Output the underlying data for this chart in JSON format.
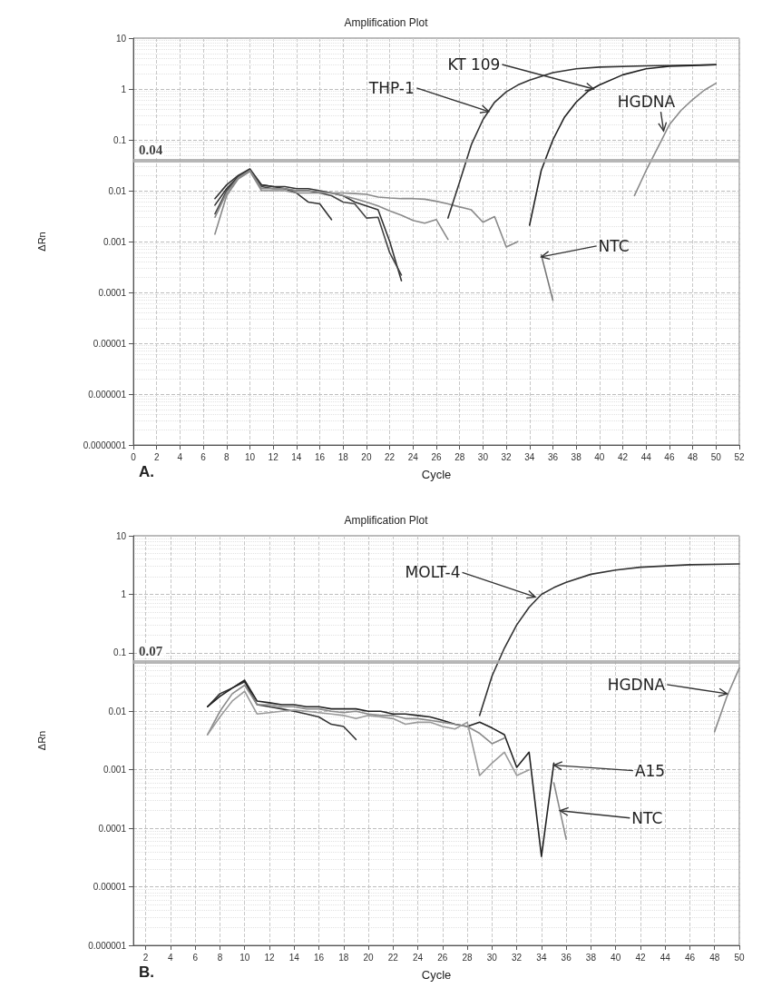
{
  "chart_data": [
    {
      "type": "line",
      "title": "Amplification Plot",
      "xlabel": "Cycle",
      "ylabel": "ΔRn",
      "log": "y",
      "grid": true,
      "xlim": [
        0,
        52
      ],
      "xticks": [
        0,
        2,
        4,
        6,
        8,
        10,
        12,
        14,
        16,
        18,
        20,
        22,
        24,
        26,
        28,
        30,
        32,
        34,
        36,
        38,
        40,
        42,
        44,
        46,
        48,
        50,
        52
      ],
      "ylim": [
        1e-07,
        10
      ],
      "yticks": [
        10,
        1,
        0.1,
        0.01,
        0.001,
        0.0001,
        {
          "value": 1e-05,
          "label": "0.00001"
        },
        {
          "value": 1e-06,
          "label": "0.000001"
        },
        {
          "value": 1e-07,
          "label": "0.0000001"
        }
      ],
      "ref_lines": [
        {
          "axis": "y",
          "value": 0.04,
          "label": "0.04",
          "color": "#aaaaaa"
        }
      ],
      "series": [
        {
          "color": "#333333",
          "x": [
            7,
            8,
            9,
            10,
            11,
            12,
            13,
            14,
            15,
            16,
            17
          ],
          "values": [
            0.007,
            0.013,
            0.02,
            0.027,
            0.013,
            0.012,
            0.011,
            0.009,
            0.006,
            0.0055,
            0.0027
          ]
        },
        {
          "color": "#333333",
          "x": [
            7,
            8,
            9,
            10,
            11,
            12,
            13,
            14,
            15,
            16,
            17,
            18,
            19,
            20,
            21,
            22,
            23
          ],
          "values": [
            0.0052,
            0.011,
            0.019,
            0.026,
            0.013,
            0.012,
            0.012,
            0.011,
            0.011,
            0.01,
            0.009,
            0.008,
            0.006,
            0.005,
            0.0042,
            0.001,
            0.00017
          ]
        },
        {
          "color": "#444444",
          "x": [
            7,
            8,
            9,
            10,
            11,
            12,
            13,
            14,
            15,
            16,
            17,
            18,
            19,
            20,
            21,
            22,
            23
          ],
          "values": [
            0.0035,
            0.01,
            0.018,
            0.025,
            0.012,
            0.011,
            0.011,
            0.01,
            0.01,
            0.009,
            0.008,
            0.006,
            0.0055,
            0.0029,
            0.003,
            0.0006,
            0.00022
          ]
        },
        {
          "color": "#8a8a8a",
          "x": [
            7,
            8,
            9,
            10,
            11,
            12,
            13,
            14,
            15,
            16,
            17,
            18,
            19,
            20,
            21,
            22,
            23,
            24,
            25,
            26,
            27
          ],
          "values": [
            0.0014,
            0.008,
            0.017,
            0.024,
            0.01,
            0.01,
            0.01,
            0.009,
            0.009,
            0.009,
            0.009,
            0.008,
            0.007,
            0.006,
            0.005,
            0.004,
            0.0033,
            0.0026,
            0.0023,
            0.0027,
            0.0011
          ]
        },
        {
          "color": "#8a8a8a",
          "x": [
            7,
            8,
            9,
            10,
            11,
            12,
            13,
            14,
            15,
            16,
            17,
            18,
            19,
            20,
            21,
            22,
            23,
            24,
            25,
            26,
            27,
            28,
            29,
            30,
            31,
            32,
            33
          ],
          "values": [
            0.003,
            0.009,
            0.018,
            0.025,
            0.011,
            0.011,
            0.011,
            0.01,
            0.01,
            0.0095,
            0.009,
            0.009,
            0.0088,
            0.0085,
            0.0075,
            0.0072,
            0.007,
            0.007,
            0.0068,
            0.0062,
            0.0055,
            0.0048,
            0.0042,
            0.0024,
            0.0031,
            0.00078,
            0.001
          ]
        },
        {
          "color": "#777777",
          "x": [
            35,
            36
          ],
          "values": [
            0.00055,
            7e-05
          ]
        },
        {
          "color": "#333333",
          "x": [
            27,
            28,
            29,
            30,
            31,
            32,
            33,
            34,
            36,
            38,
            40,
            44,
            50
          ],
          "values": [
            0.0029,
            0.015,
            0.08,
            0.25,
            0.55,
            0.88,
            1.2,
            1.5,
            2.1,
            2.5,
            2.7,
            2.85,
            3.0
          ]
        },
        {
          "color": "#222222",
          "x": [
            34,
            35,
            36,
            37,
            38,
            39,
            40,
            42,
            44,
            46,
            50
          ],
          "values": [
            0.0021,
            0.025,
            0.1,
            0.28,
            0.55,
            0.9,
            1.2,
            1.9,
            2.5,
            2.8,
            3.0
          ]
        },
        {
          "color": "#8a8a8a",
          "x": [
            43,
            44,
            45,
            46,
            47,
            48,
            49,
            50
          ],
          "values": [
            0.008,
            0.025,
            0.07,
            0.2,
            0.38,
            0.62,
            0.95,
            1.3
          ]
        }
      ],
      "annotations": [
        {
          "text": "THP-1",
          "x": 30.5,
          "y": 0.36
        },
        {
          "text": "KT 109",
          "x": 39.5,
          "y": 1.0
        },
        {
          "text": "HGDNA",
          "x": 45.5,
          "y": 0.15
        },
        {
          "text": "NTC",
          "x": 35,
          "y": 0.0005
        },
        "A."
      ]
    },
    {
      "type": "line",
      "title": "Amplification Plot",
      "xlabel": "Cycle",
      "ylabel": "ΔRn",
      "log": "y",
      "grid": true,
      "xlim": [
        1,
        50
      ],
      "xticks": [
        2,
        4,
        6,
        8,
        10,
        12,
        14,
        16,
        18,
        20,
        22,
        24,
        26,
        28,
        30,
        32,
        34,
        36,
        38,
        40,
        42,
        44,
        46,
        48,
        50
      ],
      "ylim": [
        1e-06,
        10
      ],
      "yticks": [
        10,
        1,
        0.1,
        0.01,
        0.001,
        0.0001,
        {
          "value": 1e-05,
          "label": "0.00001"
        },
        {
          "value": 1e-06,
          "label": "0.000001"
        }
      ],
      "ref_lines": [
        {
          "axis": "y",
          "value": 0.07,
          "label": "0.07",
          "color": "#aaaaaa"
        }
      ],
      "series": [
        {
          "color": "#333333",
          "x": [
            7,
            8,
            9,
            10,
            11,
            12,
            13,
            14,
            15,
            16,
            17,
            18,
            19
          ],
          "values": [
            0.012,
            0.02,
            0.025,
            0.032,
            0.013,
            0.012,
            0.011,
            0.01,
            0.009,
            0.008,
            0.006,
            0.0055,
            0.0033
          ]
        },
        {
          "color": "#222222",
          "x": [
            7,
            8,
            9,
            10,
            11,
            12,
            13,
            14,
            15,
            16,
            17,
            18,
            19,
            20,
            21,
            22,
            23,
            24,
            25,
            26,
            27,
            28,
            29,
            30,
            31,
            32,
            33,
            34,
            35
          ],
          "values": [
            0.012,
            0.018,
            0.025,
            0.034,
            0.015,
            0.014,
            0.013,
            0.013,
            0.012,
            0.012,
            0.011,
            0.011,
            0.011,
            0.01,
            0.01,
            0.009,
            0.009,
            0.0085,
            0.008,
            0.007,
            0.006,
            0.0055,
            0.0065,
            0.0052,
            0.004,
            0.0011,
            0.002,
            3.3e-05,
            0.0013
          ]
        },
        {
          "color": "#8a8a8a",
          "x": [
            7,
            8,
            9,
            10,
            11,
            12,
            13,
            14,
            15,
            16,
            17,
            18,
            19,
            20,
            21,
            22,
            23,
            24,
            25,
            26,
            27,
            28,
            29,
            30,
            31
          ],
          "values": [
            0.004,
            0.01,
            0.02,
            0.028,
            0.013,
            0.013,
            0.012,
            0.012,
            0.011,
            0.011,
            0.01,
            0.0095,
            0.01,
            0.009,
            0.0085,
            0.0085,
            0.0075,
            0.0075,
            0.007,
            0.0065,
            0.006,
            0.0055,
            0.0042,
            0.0028,
            0.0035
          ]
        },
        {
          "color": "#9a9a9a",
          "x": [
            7,
            8,
            9,
            10,
            11,
            12,
            13,
            14,
            15,
            16,
            17,
            18,
            19,
            20,
            21,
            22,
            23,
            24,
            25,
            26,
            27,
            28,
            29,
            30,
            31,
            32,
            33
          ],
          "values": [
            0.004,
            0.008,
            0.015,
            0.022,
            0.009,
            0.0095,
            0.01,
            0.0105,
            0.01,
            0.0095,
            0.009,
            0.0085,
            0.0075,
            0.0085,
            0.008,
            0.0075,
            0.006,
            0.0065,
            0.0065,
            0.0055,
            0.005,
            0.0065,
            0.0008,
            0.0013,
            0.002,
            0.0008,
            0.001
          ]
        },
        {
          "color": "#8a8a8a",
          "x": [
            35,
            36
          ],
          "values": [
            0.0006,
            6.5e-05
          ]
        },
        {
          "color": "#333333",
          "x": [
            29,
            30,
            31,
            32,
            33,
            34,
            35,
            36,
            38,
            40,
            42,
            46,
            50
          ],
          "values": [
            0.0085,
            0.04,
            0.12,
            0.3,
            0.6,
            1.0,
            1.3,
            1.6,
            2.2,
            2.6,
            2.9,
            3.2,
            3.3
          ]
        },
        {
          "color": "#8a8a8a",
          "x": [
            48,
            49,
            50
          ],
          "values": [
            0.0045,
            0.018,
            0.055
          ]
        }
      ],
      "annotations": [
        {
          "text": "MOLT-4",
          "x": 33.5,
          "y": 0.9
        },
        {
          "text": "HGDNA",
          "x": 49,
          "y": 0.02
        },
        {
          "text": "A15",
          "x": 35,
          "y": 0.0012
        },
        {
          "text": "NTC",
          "x": 35.5,
          "y": 0.0002
        },
        "B."
      ]
    }
  ]
}
